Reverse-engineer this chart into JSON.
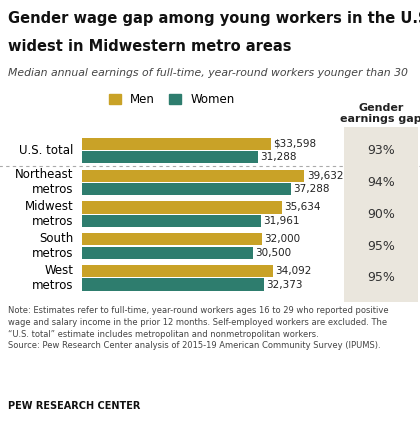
{
  "title_line1": "Gender wage gap among young workers in the U.S. is",
  "title_line2": "widest in Midwestern metro areas",
  "subtitle": "Median annual earnings of full-time, year-round workers younger than 30",
  "categories": [
    "U.S. total",
    "Northeast\nmetros",
    "Midwest\nmetros",
    "South\nmetros",
    "West\nmetros"
  ],
  "men_values": [
    33598,
    39632,
    35634,
    32000,
    34092
  ],
  "women_values": [
    31288,
    37288,
    31961,
    30500,
    32373
  ],
  "men_labels": [
    "$33,598",
    "39,632",
    "35,634",
    "32,000",
    "34,092"
  ],
  "women_labels": [
    "31,288",
    "37,288",
    "31,961",
    "30,500",
    "32,373"
  ],
  "gender_gap": [
    "93%",
    "94%",
    "90%",
    "95%",
    "95%"
  ],
  "men_color": "#C9A227",
  "women_color": "#2E7D6E",
  "background_color": "#FFFFFF",
  "gap_bg_color": "#EAE6DD",
  "note_line1": "Note: Estimates refer to full-time, year-round workers ages 16 to 29 who reported positive",
  "note_line2": "wage and salary income in the prior 12 months. Self-employed workers are excluded. The",
  "note_line3": "“U.S. total” estimate includes metropolitan and nonmetropolitan workers.",
  "note_line4": "Source: Pew Research Center analysis of 2015-19 American Community Survey (IPUMS).",
  "source_label": "PEW RESEARCH CENTER",
  "xlim": [
    0,
    46000
  ],
  "bar_height": 0.38,
  "gap_col_header": "Gender\nearnings gap"
}
